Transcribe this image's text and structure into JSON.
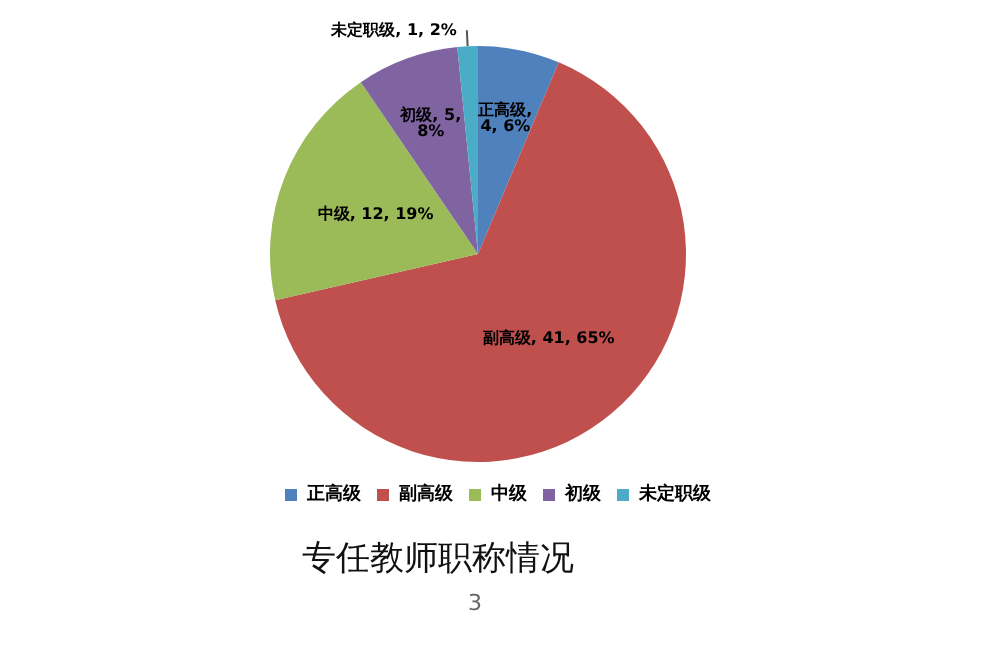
{
  "chart_data": {
    "type": "pie",
    "title": "专任教师职称情况",
    "categories": [
      "正高级",
      "副高级",
      "中级",
      "初级",
      "未定职级"
    ],
    "values": [
      4,
      41,
      12,
      5,
      1
    ],
    "colors": [
      "#4f81bd",
      "#c0504d",
      "#9bbb59",
      "#8064a2",
      "#4bacc6"
    ],
    "value_labels": [
      "正高级,\n4, 6%",
      "副高级, 41, 65%",
      "中级, 12, 19%",
      "初级, 5,\n8%",
      "未定职级, 1, 2%"
    ],
    "legend": "bottom",
    "annotations": [
      "3"
    ]
  }
}
